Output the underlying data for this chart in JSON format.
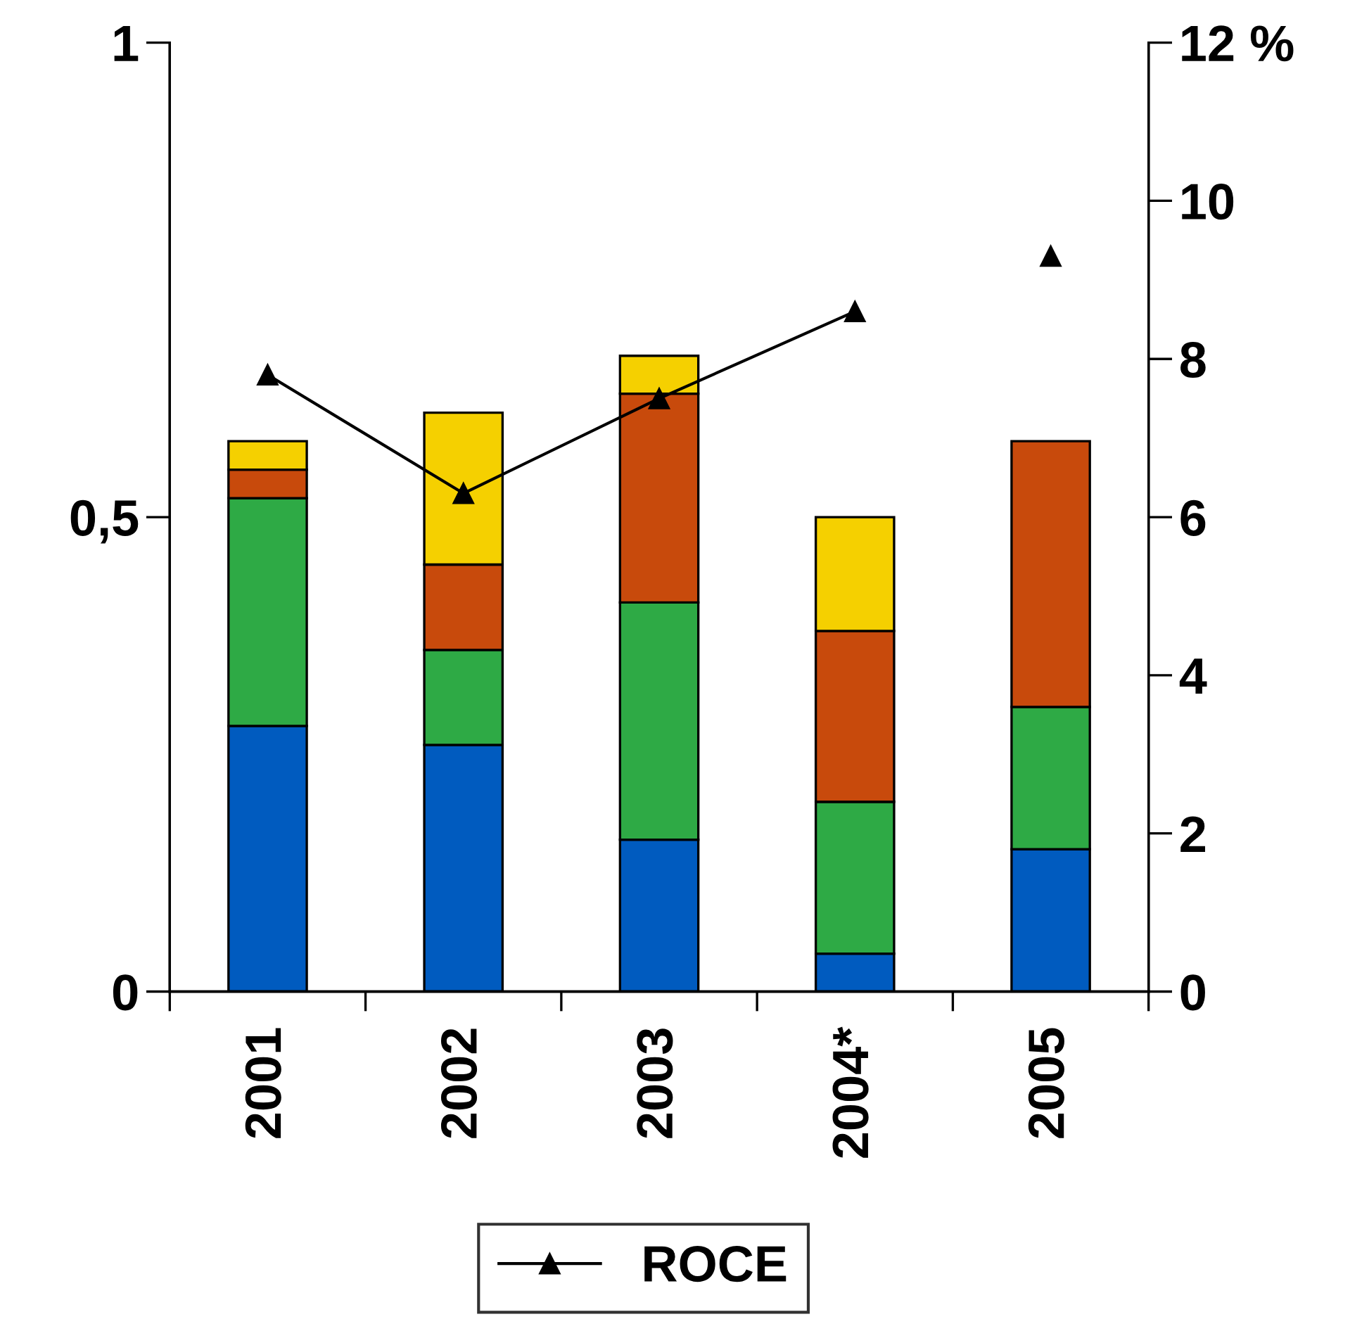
{
  "chart_data": {
    "type": "bar",
    "stacked": true,
    "categories": [
      "2001",
      "2002",
      "2003",
      "2004*",
      "2005"
    ],
    "series": [
      {
        "color": "#005bbf",
        "values": [
          0.28,
          0.26,
          0.16,
          0.04,
          0.15
        ]
      },
      {
        "color": "#2eaa45",
        "values": [
          0.24,
          0.1,
          0.25,
          0.16,
          0.15
        ]
      },
      {
        "color": "#c84a0c",
        "values": [
          0.03,
          0.09,
          0.22,
          0.18,
          0.28
        ]
      },
      {
        "color": "#f5d000",
        "values": [
          0.03,
          0.16,
          0.04,
          0.12,
          null
        ]
      },
      {
        "name": "ROCE",
        "type": "line",
        "axis": "y2",
        "color": "#000000",
        "marker": "triangle",
        "values": [
          7.8,
          6.3,
          7.5,
          8.6,
          null
        ]
      },
      {
        "type": "scatter",
        "axis": "y2",
        "color": "#000000",
        "marker": "triangle",
        "values": [
          null,
          null,
          null,
          null,
          9.3
        ]
      }
    ],
    "ylim": [
      0,
      1
    ],
    "yticks": [
      0,
      {
        "value": 0.5,
        "label": "0,5"
      },
      1
    ],
    "y2lim": [
      0,
      12
    ],
    "y2ticks": [
      0,
      2,
      4,
      6,
      8,
      10,
      {
        "value": 12,
        "label": "12 %"
      }
    ],
    "grid": false,
    "legend": "bottom"
  }
}
